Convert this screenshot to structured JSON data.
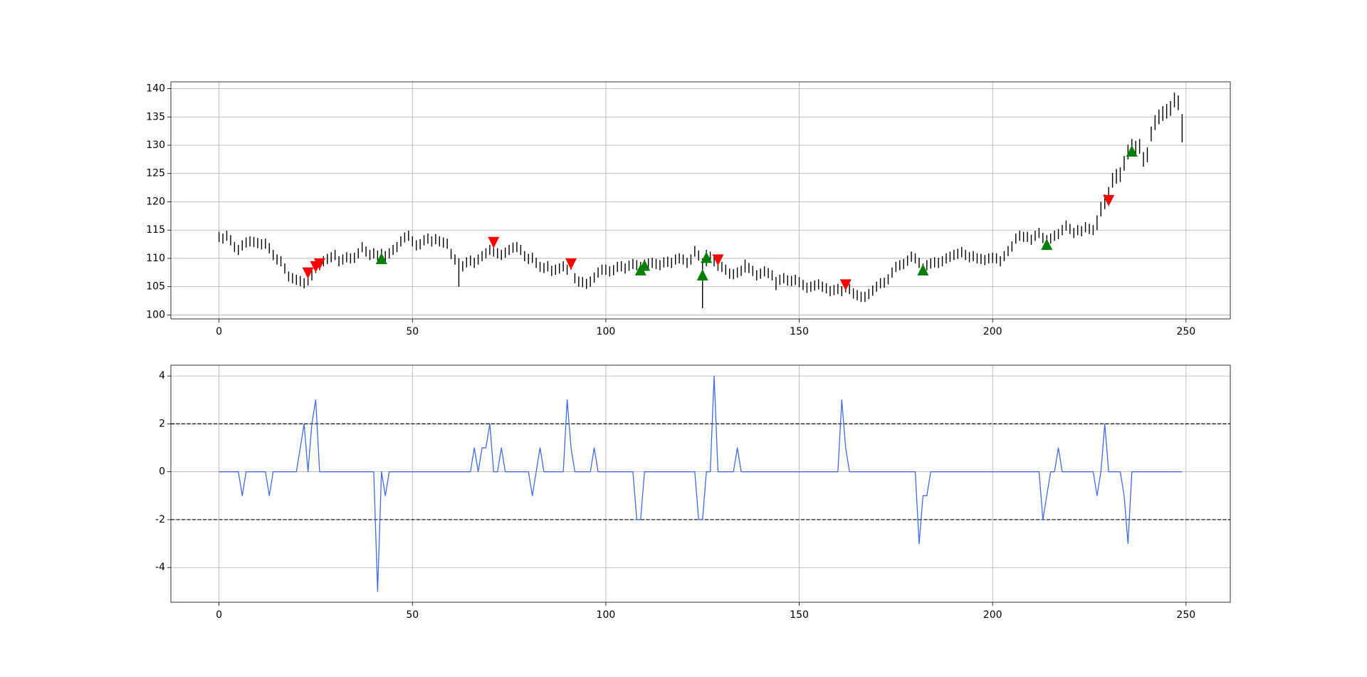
{
  "chart_data": [
    {
      "type": "ohlc",
      "color": "#000000",
      "grid": true,
      "xlim": [
        -12.45,
        261.45
      ],
      "xticks": [
        0,
        50,
        100,
        150,
        200,
        250
      ],
      "ylim": [
        99.3,
        141.2
      ],
      "yticks": [
        100,
        105,
        110,
        115,
        120,
        125,
        130,
        135,
        140
      ],
      "x": [
        0,
        1,
        2,
        3,
        4,
        5,
        6,
        7,
        8,
        9,
        10,
        11,
        12,
        13,
        14,
        15,
        16,
        17,
        18,
        19,
        20,
        21,
        22,
        23,
        24,
        25,
        26,
        27,
        28,
        29,
        30,
        31,
        32,
        33,
        34,
        35,
        36,
        37,
        38,
        39,
        40,
        41,
        42,
        43,
        44,
        45,
        46,
        47,
        48,
        49,
        50,
        51,
        52,
        53,
        54,
        55,
        56,
        57,
        58,
        59,
        60,
        61,
        62,
        63,
        64,
        65,
        66,
        67,
        68,
        69,
        70,
        71,
        72,
        73,
        74,
        75,
        76,
        77,
        78,
        79,
        80,
        81,
        82,
        83,
        84,
        85,
        86,
        87,
        88,
        89,
        90,
        91,
        92,
        93,
        94,
        95,
        96,
        97,
        98,
        99,
        100,
        101,
        102,
        103,
        104,
        105,
        106,
        107,
        108,
        109,
        110,
        111,
        112,
        113,
        114,
        115,
        116,
        117,
        118,
        119,
        120,
        121,
        122,
        123,
        124,
        125,
        126,
        127,
        128,
        129,
        130,
        131,
        132,
        133,
        134,
        135,
        136,
        137,
        138,
        139,
        140,
        141,
        142,
        143,
        144,
        145,
        146,
        147,
        148,
        149,
        150,
        151,
        152,
        153,
        154,
        155,
        156,
        157,
        158,
        159,
        160,
        161,
        162,
        163,
        164,
        165,
        166,
        167,
        168,
        169,
        170,
        171,
        172,
        173,
        174,
        175,
        176,
        177,
        178,
        179,
        180,
        181,
        182,
        183,
        184,
        185,
        186,
        187,
        188,
        189,
        190,
        191,
        192,
        193,
        194,
        195,
        196,
        197,
        198,
        199,
        200,
        201,
        202,
        203,
        204,
        205,
        206,
        207,
        208,
        209,
        210,
        211,
        212,
        213,
        214,
        215,
        216,
        217,
        218,
        219,
        220,
        221,
        222,
        223,
        224,
        225,
        226,
        227,
        228,
        229,
        230,
        231,
        232,
        233,
        234,
        235,
        236,
        237,
        238,
        239,
        240,
        241,
        242,
        243,
        244,
        245,
        246,
        247,
        248,
        249
      ],
      "low": [
        112.9,
        112.6,
        113.1,
        112.3,
        111.1,
        110.6,
        111.4,
        111.9,
        112.1,
        112.0,
        111.8,
        111.6,
        111.7,
        110.9,
        109.7,
        108.9,
        108.6,
        107.3,
        105.9,
        105.6,
        105.3,
        105.1,
        104.7,
        105.2,
        106.1,
        107.4,
        107.9,
        108.6,
        109.0,
        109.3,
        109.7,
        108.6,
        108.9,
        109.3,
        109.1,
        109.2,
        110.0,
        111.1,
        110.3,
        109.7,
        110.0,
        109.6,
        109.9,
        109.5,
        110.0,
        110.6,
        111.1,
        112.1,
        112.8,
        113.1,
        112.1,
        111.4,
        111.6,
        112.3,
        112.6,
        112.1,
        112.5,
        112.1,
        111.9,
        111.7,
        109.9,
        108.9,
        105.0,
        107.7,
        108.4,
        108.7,
        108.3,
        108.9,
        109.5,
        110.0,
        110.6,
        110.3,
        110.0,
        109.7,
        110.1,
        110.6,
        111.0,
        111.1,
        110.6,
        109.5,
        109.0,
        109.2,
        108.3,
        107.6,
        107.4,
        107.7,
        106.9,
        107.1,
        107.3,
        107.7,
        107.1,
        108.0,
        105.6,
        105.0,
        104.9,
        104.6,
        105.0,
        105.7,
        106.6,
        107.1,
        107.1,
        106.8,
        107.0,
        107.6,
        107.7,
        107.3,
        107.8,
        108.1,
        107.9,
        107.6,
        108.0,
        108.2,
        108.3,
        108.1,
        107.9,
        108.4,
        108.5,
        108.3,
        108.9,
        109.1,
        108.9,
        108.3,
        108.9,
        110.3,
        109.6,
        101.2,
        108.6,
        109.4,
        108.6,
        107.8,
        107.6,
        107.1,
        106.4,
        106.3,
        106.6,
        106.9,
        107.5,
        107.4,
        106.9,
        106.1,
        106.4,
        106.8,
        106.5,
        106.1,
        104.4,
        105.3,
        105.6,
        105.2,
        105.1,
        105.3,
        104.9,
        104.4,
        103.9,
        104.1,
        104.3,
        104.5,
        104.1,
        103.8,
        103.3,
        103.5,
        103.7,
        103.3,
        104.0,
        103.7,
        102.9,
        102.6,
        102.3,
        102.3,
        102.8,
        103.4,
        104.1,
        104.7,
        104.8,
        105.4,
        106.6,
        107.6,
        107.9,
        108.1,
        108.7,
        109.4,
        109.1,
        108.3,
        107.3,
        107.9,
        108.2,
        108.4,
        108.3,
        108.6,
        109.1,
        109.4,
        109.7,
        109.9,
        110.2,
        109.7,
        109.3,
        109.5,
        109.1,
        109.0,
        108.8,
        109.1,
        109.2,
        109.1,
        108.6,
        109.5,
        110.4,
        111.2,
        112.6,
        113.1,
        112.9,
        112.9,
        112.4,
        113.1,
        113.6,
        112.7,
        112.3,
        112.6,
        113.1,
        113.4,
        114.1,
        114.9,
        114.3,
        113.6,
        114.1,
        113.9,
        114.6,
        114.3,
        114.1,
        115.0,
        117.4,
        118.7,
        120.0,
        122.5,
        123.2,
        123.5,
        125.5,
        127.5,
        128.5,
        128.2,
        128.5,
        126.2,
        127.0,
        130.7,
        132.7,
        133.7,
        134.3,
        134.7,
        135.2,
        136.7,
        136.2,
        130.5
      ],
      "high": [
        114.7,
        114.4,
        114.9,
        114.1,
        112.9,
        112.4,
        113.2,
        113.7,
        113.9,
        113.8,
        113.6,
        113.4,
        113.5,
        112.7,
        111.5,
        110.7,
        110.4,
        109.1,
        107.7,
        107.4,
        107.1,
        106.9,
        106.5,
        107.0,
        107.9,
        109.2,
        109.7,
        110.4,
        110.8,
        111.1,
        111.5,
        110.4,
        110.7,
        111.1,
        110.9,
        111.0,
        111.8,
        112.9,
        112.1,
        111.5,
        111.8,
        111.4,
        111.7,
        111.3,
        111.8,
        112.4,
        112.9,
        113.9,
        114.6,
        114.9,
        113.9,
        113.2,
        113.4,
        114.1,
        114.4,
        113.9,
        114.3,
        113.9,
        113.7,
        113.5,
        111.7,
        110.7,
        110.0,
        109.5,
        110.2,
        110.5,
        110.1,
        110.7,
        111.3,
        111.8,
        112.4,
        112.1,
        111.8,
        111.5,
        111.9,
        112.4,
        112.8,
        112.9,
        112.4,
        111.3,
        110.8,
        111.0,
        110.1,
        109.4,
        109.2,
        109.5,
        108.7,
        108.9,
        109.1,
        109.5,
        108.9,
        109.8,
        107.4,
        106.8,
        106.7,
        106.4,
        106.8,
        107.5,
        108.4,
        108.9,
        108.9,
        108.6,
        108.8,
        109.4,
        109.5,
        109.1,
        109.6,
        109.9,
        109.7,
        109.4,
        109.8,
        110.0,
        110.1,
        109.9,
        109.7,
        110.2,
        110.3,
        110.1,
        110.7,
        110.9,
        110.7,
        110.1,
        110.7,
        112.2,
        111.4,
        110.0,
        111.5,
        111.2,
        110.4,
        109.6,
        109.4,
        108.9,
        108.2,
        108.1,
        108.4,
        108.7,
        109.8,
        109.2,
        108.7,
        107.9,
        108.2,
        108.6,
        108.3,
        107.9,
        106.7,
        107.1,
        107.4,
        107.0,
        106.9,
        107.1,
        106.7,
        106.2,
        105.7,
        105.9,
        106.1,
        106.3,
        105.9,
        105.6,
        105.1,
        105.3,
        105.5,
        105.1,
        105.8,
        105.5,
        104.7,
        104.4,
        104.1,
        104.1,
        104.6,
        105.2,
        105.9,
        106.5,
        106.6,
        107.2,
        108.4,
        109.4,
        109.7,
        109.9,
        110.5,
        111.2,
        110.9,
        110.1,
        109.1,
        109.7,
        110.0,
        110.2,
        110.1,
        110.4,
        110.9,
        111.2,
        111.5,
        111.7,
        112.0,
        111.5,
        111.1,
        111.3,
        110.9,
        110.8,
        110.6,
        110.9,
        111.0,
        110.9,
        110.4,
        111.3,
        112.2,
        113.0,
        114.4,
        114.9,
        114.7,
        114.7,
        114.2,
        114.9,
        115.4,
        114.5,
        114.1,
        114.4,
        114.9,
        115.2,
        115.9,
        116.7,
        116.1,
        115.4,
        115.9,
        115.7,
        116.4,
        116.1,
        115.9,
        117.6,
        120.0,
        121.3,
        122.6,
        125.1,
        125.8,
        126.1,
        128.1,
        130.1,
        131.1,
        130.8,
        131.1,
        128.8,
        129.6,
        133.3,
        135.3,
        136.3,
        136.9,
        137.3,
        137.8,
        139.3,
        138.8,
        135.5
      ],
      "markers": [
        {
          "marker": "down",
          "color": "#ff0000",
          "x": [
            23,
            25,
            26,
            71,
            91,
            129,
            162,
            230
          ],
          "y": [
            107.4,
            108.5,
            109.0,
            112.8,
            109.0,
            109.7,
            105.3,
            120.2
          ]
        },
        {
          "marker": "up",
          "color": "#008000",
          "x": [
            42,
            109,
            110,
            125,
            126,
            182,
            214,
            236
          ],
          "y": [
            110.0,
            108.0,
            108.8,
            107.1,
            110.2,
            108.0,
            112.5,
            129.0
          ]
        }
      ]
    },
    {
      "type": "line",
      "grid": true,
      "xlim": [
        -12.45,
        261.45
      ],
      "xticks": [
        0,
        50,
        100,
        150,
        200,
        250
      ],
      "ylim": [
        -5.45,
        4.45
      ],
      "yticks": [
        -4,
        -2,
        0,
        2,
        4
      ],
      "hlines": [
        2,
        -2
      ],
      "hline_color": "#000000",
      "hline_style": "dashed",
      "x": [
        0,
        1,
        2,
        3,
        4,
        5,
        6,
        7,
        8,
        9,
        10,
        11,
        12,
        13,
        14,
        15,
        16,
        17,
        18,
        19,
        20,
        21,
        22,
        23,
        24,
        25,
        26,
        27,
        28,
        29,
        30,
        31,
        32,
        33,
        34,
        35,
        36,
        37,
        38,
        39,
        40,
        41,
        42,
        43,
        44,
        45,
        46,
        47,
        48,
        49,
        50,
        51,
        52,
        53,
        54,
        55,
        56,
        57,
        58,
        59,
        60,
        61,
        62,
        63,
        64,
        65,
        66,
        67,
        68,
        69,
        70,
        71,
        72,
        73,
        74,
        75,
        76,
        77,
        78,
        79,
        80,
        81,
        82,
        83,
        84,
        85,
        86,
        87,
        88,
        89,
        90,
        91,
        92,
        93,
        94,
        95,
        96,
        97,
        98,
        99,
        100,
        101,
        102,
        103,
        104,
        105,
        106,
        107,
        108,
        109,
        110,
        111,
        112,
        113,
        114,
        115,
        116,
        117,
        118,
        119,
        120,
        121,
        122,
        123,
        124,
        125,
        126,
        127,
        128,
        129,
        130,
        131,
        132,
        133,
        134,
        135,
        136,
        137,
        138,
        139,
        140,
        141,
        142,
        143,
        144,
        145,
        146,
        147,
        148,
        149,
        150,
        151,
        152,
        153,
        154,
        155,
        156,
        157,
        158,
        159,
        160,
        161,
        162,
        163,
        164,
        165,
        166,
        167,
        168,
        169,
        170,
        171,
        172,
        173,
        174,
        175,
        176,
        177,
        178,
        179,
        180,
        181,
        182,
        183,
        184,
        185,
        186,
        187,
        188,
        189,
        190,
        191,
        192,
        193,
        194,
        195,
        196,
        197,
        198,
        199,
        200,
        201,
        202,
        203,
        204,
        205,
        206,
        207,
        208,
        209,
        210,
        211,
        212,
        213,
        214,
        215,
        216,
        217,
        218,
        219,
        220,
        221,
        222,
        223,
        224,
        225,
        226,
        227,
        228,
        229,
        230,
        231,
        232,
        233,
        234,
        235,
        236,
        237,
        238,
        239,
        240,
        241,
        242,
        243,
        244,
        245,
        246,
        247,
        248,
        249
      ],
      "series": [
        {
          "color": "#4169e1",
          "values": [
            0,
            0,
            0,
            0,
            0,
            0,
            -1,
            0,
            0,
            0,
            0,
            0,
            0,
            -1,
            0,
            0,
            0,
            0,
            0,
            0,
            0,
            1,
            2,
            0,
            2,
            3,
            0,
            0,
            0,
            0,
            0,
            0,
            0,
            0,
            0,
            0,
            0,
            0,
            0,
            0,
            0,
            -5,
            0,
            -1,
            0,
            0,
            0,
            0,
            0,
            0,
            0,
            0,
            0,
            0,
            0,
            0,
            0,
            0,
            0,
            0,
            0,
            0,
            0,
            0,
            0,
            0,
            1,
            0,
            1,
            1,
            2,
            0,
            0,
            1,
            0,
            0,
            0,
            0,
            0,
            0,
            0,
            -1,
            0,
            1,
            0,
            0,
            0,
            0,
            0,
            0,
            3,
            1,
            0,
            0,
            0,
            0,
            0,
            1,
            0,
            0,
            0,
            0,
            0,
            0,
            0,
            0,
            0,
            0,
            -2,
            -2,
            0,
            0,
            0,
            0,
            0,
            0,
            0,
            0,
            0,
            0,
            0,
            0,
            0,
            0,
            -2,
            -2,
            0,
            0,
            4,
            0,
            0,
            0,
            0,
            0,
            1,
            0,
            0,
            0,
            0,
            0,
            0,
            0,
            0,
            0,
            0,
            0,
            0,
            0,
            0,
            0,
            0,
            0,
            0,
            0,
            0,
            0,
            0,
            0,
            0,
            0,
            0,
            3,
            1,
            0,
            0,
            0,
            0,
            0,
            0,
            0,
            0,
            0,
            0,
            0,
            0,
            0,
            0,
            0,
            0,
            0,
            0,
            -3,
            -1,
            -1,
            0,
            0,
            0,
            0,
            0,
            0,
            0,
            0,
            0,
            0,
            0,
            0,
            0,
            0,
            0,
            0,
            0,
            0,
            0,
            0,
            0,
            0,
            0,
            0,
            0,
            0,
            0,
            0,
            0,
            -2,
            -1,
            0,
            0,
            1,
            0,
            0,
            0,
            0,
            0,
            0,
            0,
            0,
            0,
            -1,
            0,
            2,
            0,
            0,
            0,
            0,
            -1,
            -3,
            0,
            0,
            0,
            0,
            0,
            0,
            0,
            0,
            0,
            0,
            0,
            0,
            0,
            0
          ]
        }
      ]
    }
  ]
}
